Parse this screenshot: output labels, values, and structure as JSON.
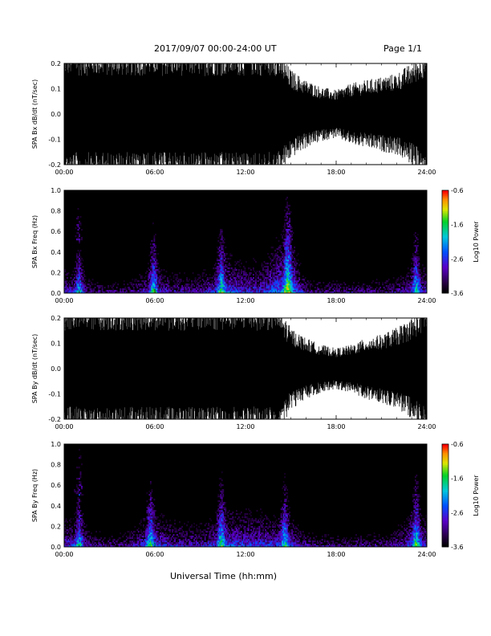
{
  "header": {
    "title": "2017/09/07  00:00-24:00 UT",
    "page": "Page 1/1"
  },
  "xaxis": {
    "label": "Universal Time (hh:mm)",
    "range_hours": [
      0,
      24
    ],
    "ticks": [
      "00:00",
      "06:00",
      "12:00",
      "18:00",
      "24:00"
    ]
  },
  "colorbar": {
    "label": "Log10 Power",
    "ticks": [
      "-0.6",
      "-1.6",
      "-2.6",
      "-3.6"
    ],
    "range": [
      -3.6,
      -0.6
    ]
  },
  "colors": {
    "waveform": "#000000",
    "background": "#000000",
    "frame": "#000000"
  },
  "chart_data": [
    {
      "type": "line",
      "name": "bx-waveform",
      "ylabel": "SPA Bx dB/dt (nT/sec)",
      "ylim": [
        -0.2,
        0.2
      ],
      "yticks": [
        "0.2",
        "0.1",
        "0.0",
        "-0.1",
        "-0.2"
      ],
      "x_hours": [
        0,
        1,
        2,
        3,
        4,
        5,
        6,
        7,
        8,
        9,
        10,
        11,
        12,
        13,
        14,
        15,
        16,
        17,
        18,
        19,
        20,
        21,
        22,
        23,
        24
      ],
      "envelope_amplitude": [
        0.2,
        0.2,
        0.2,
        0.2,
        0.2,
        0.2,
        0.2,
        0.2,
        0.2,
        0.2,
        0.2,
        0.2,
        0.2,
        0.2,
        0.2,
        0.13,
        0.1,
        0.08,
        0.07,
        0.09,
        0.1,
        0.11,
        0.12,
        0.15,
        0.2
      ]
    },
    {
      "type": "heatmap",
      "name": "bx-spectrogram",
      "ylabel": "SPA Bx Freq (Hz)",
      "ylim": [
        0.0,
        1.0
      ],
      "yticks": [
        "1.0",
        "0.8",
        "0.6",
        "0.4",
        "0.2",
        "0.0"
      ],
      "enhancement_hours": [
        1.0,
        5.9,
        10.4,
        14.8,
        23.3
      ],
      "intensity_low_freq": [
        -2.4,
        -2.6,
        -2.8,
        -2.9,
        -2.9,
        -2.6,
        -2.3,
        -2.6,
        -2.6,
        -2.6,
        -2.3,
        -2.1,
        -2.3,
        -2.3,
        -1.9,
        -1.7,
        -2.7,
        -2.8,
        -2.8,
        -2.8,
        -2.8,
        -2.8,
        -2.7,
        -2.4,
        -2.4
      ]
    },
    {
      "type": "line",
      "name": "by-waveform",
      "ylabel": "SPA By dB/dt (nT/sec)",
      "ylim": [
        -0.2,
        0.2
      ],
      "yticks": [
        "0.2",
        "0.1",
        "0.0",
        "-0.1",
        "-0.2"
      ],
      "x_hours": [
        0,
        1,
        2,
        3,
        4,
        5,
        6,
        7,
        8,
        9,
        10,
        11,
        12,
        13,
        14,
        15,
        16,
        17,
        18,
        19,
        20,
        21,
        22,
        23,
        24
      ],
      "envelope_amplitude": [
        0.2,
        0.2,
        0.2,
        0.2,
        0.2,
        0.2,
        0.2,
        0.2,
        0.2,
        0.2,
        0.2,
        0.2,
        0.2,
        0.2,
        0.2,
        0.12,
        0.09,
        0.07,
        0.06,
        0.07,
        0.09,
        0.1,
        0.12,
        0.15,
        0.2
      ]
    },
    {
      "type": "heatmap",
      "name": "by-spectrogram",
      "ylabel": "SPA By Freq (Hz)",
      "ylim": [
        0.0,
        1.0
      ],
      "yticks": [
        "1.0",
        "0.8",
        "0.6",
        "0.4",
        "0.2",
        "0.0"
      ],
      "enhancement_hours": [
        1.0,
        5.7,
        10.4,
        14.6,
        23.3
      ],
      "intensity_low_freq": [
        -2.3,
        -2.5,
        -2.7,
        -2.8,
        -2.8,
        -2.4,
        -2.2,
        -2.4,
        -2.5,
        -2.5,
        -2.3,
        -2.1,
        -2.2,
        -2.2,
        -2.3,
        -2.3,
        -2.7,
        -2.8,
        -2.8,
        -2.8,
        -2.8,
        -2.8,
        -2.6,
        -2.2,
        -2.3
      ]
    }
  ]
}
